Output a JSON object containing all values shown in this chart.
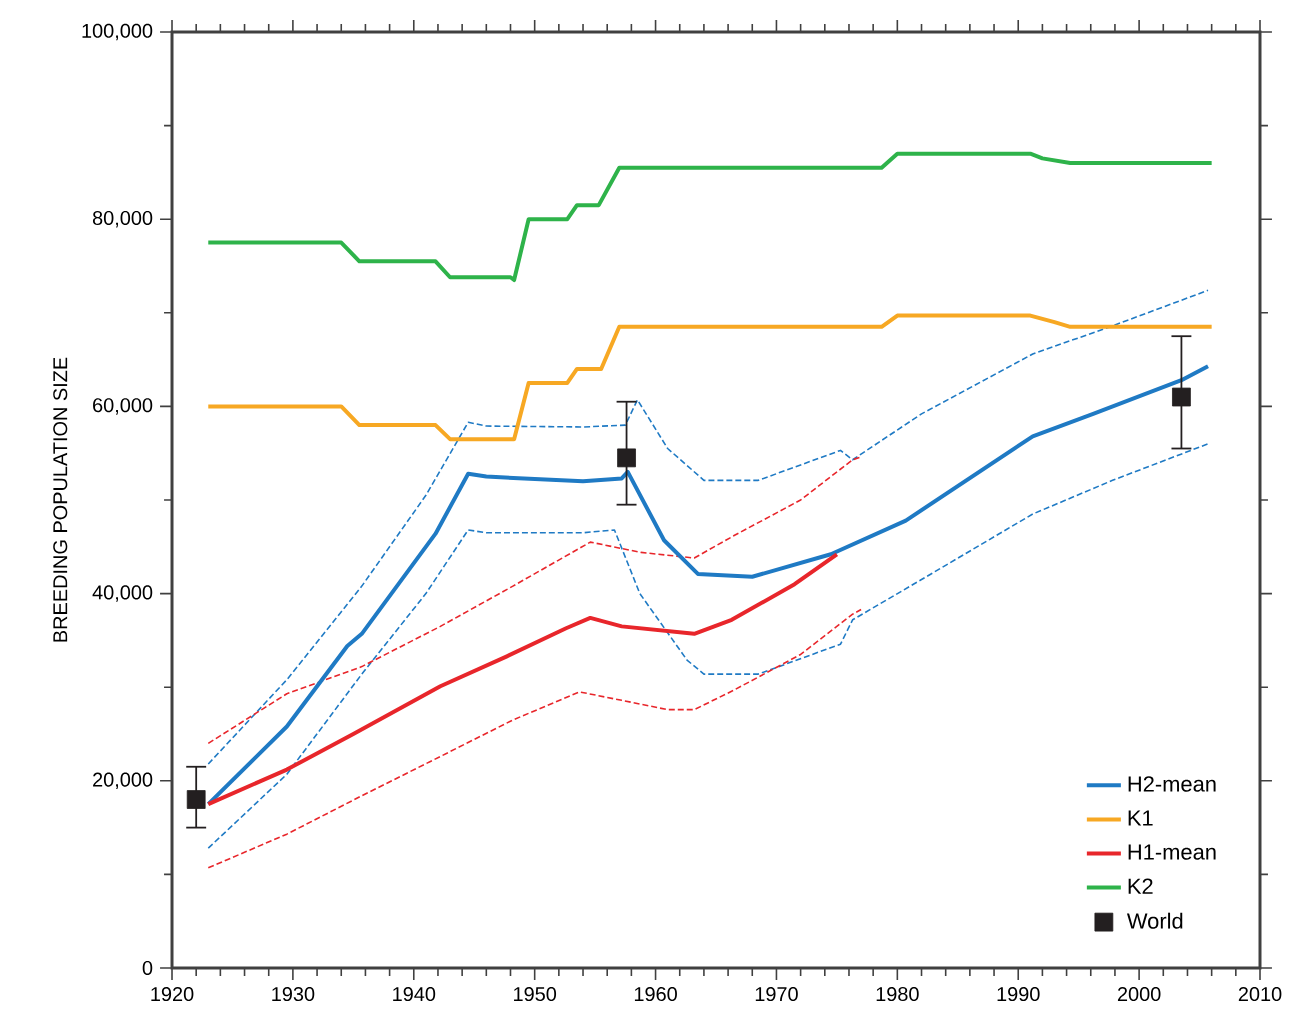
{
  "chart_data": {
    "type": "line",
    "ylabel": "BREEDING POPULATION SIZE",
    "xlim": [
      1920,
      2010
    ],
    "ylim": [
      0,
      100000
    ],
    "xticks": [
      1920,
      1930,
      1940,
      1950,
      1960,
      1970,
      1980,
      1990,
      2000,
      2010
    ],
    "yticks": [
      0,
      {
        "value": 20000,
        "label": "20,000"
      },
      {
        "value": 40000,
        "label": "40,000"
      },
      {
        "value": 60000,
        "label": "60,000"
      },
      {
        "value": 80000,
        "label": "80,000"
      },
      {
        "value": 100000,
        "label": "100,000"
      }
    ],
    "grid": false,
    "legend": "bottom right",
    "series": [
      {
        "line_style": "dashed",
        "color": "#1f7ac4",
        "x": [
          1923,
          1929.5,
          1935.7,
          1941,
          1944.5,
          1946,
          1954,
          1957.5,
          1958.5,
          1961,
          1964,
          1968.5,
          1975.3,
          1976.3,
          1982,
          1991.2,
          1997.8,
          2005.7
        ],
        "values": [
          21800,
          30800,
          40800,
          50500,
          58300,
          57900,
          57800,
          58000,
          60700,
          55500,
          52100,
          52100,
          55300,
          54300,
          59200,
          65600,
          68600,
          72400
        ]
      },
      {
        "line_style": "dashed",
        "color": "#1f7ac4",
        "x": [
          1923,
          1929.5,
          1935.7,
          1941,
          1944.5,
          1946,
          1954,
          1956.6,
          1958.7,
          1962.6,
          1964,
          1968.5,
          1975.3,
          1976.3,
          1982,
          1991.2,
          1997.8,
          2005.7
        ],
        "values": [
          12800,
          20700,
          31400,
          40000,
          46800,
          46500,
          46500,
          46800,
          40000,
          32900,
          31400,
          31400,
          34600,
          37200,
          41500,
          48500,
          52100,
          56000
        ]
      },
      {
        "line_style": "dashed",
        "color": "#e8262b",
        "x": [
          1923,
          1929.5,
          1935.7,
          1942.2,
          1948.2,
          1954.6,
          1958.8,
          1963.2,
          1966.5,
          1972,
          1976.3,
          1977
        ],
        "values": [
          24000,
          29300,
          32200,
          36500,
          40800,
          45500,
          44400,
          43800,
          46200,
          50000,
          54300,
          54600
        ]
      },
      {
        "line_style": "dashed",
        "color": "#e8262b",
        "x": [
          1923,
          1929.5,
          1935.7,
          1942.2,
          1948.2,
          1953.7,
          1957.2,
          1961,
          1963.2,
          1966.5,
          1972,
          1976.3,
          1977
        ],
        "values": [
          10700,
          14300,
          18400,
          22600,
          26500,
          29500,
          28600,
          27600,
          27600,
          29700,
          33500,
          37800,
          38300
        ]
      },
      {
        "name": "H2-mean",
        "line_style": "solid",
        "color": "#1f7ac4",
        "x": [
          1923,
          1929.5,
          1934.5,
          1935.7,
          1941.8,
          1944.5,
          1946,
          1954,
          1957.2,
          1957.7,
          1960.7,
          1963.5,
          1968,
          1974.5,
          1980.7,
          1991.2,
          1996.2,
          2003.5,
          2005.7
        ],
        "values": [
          17500,
          25800,
          34400,
          35700,
          46400,
          52800,
          52500,
          52000,
          52300,
          53000,
          45700,
          42100,
          41800,
          44200,
          47800,
          56800,
          59200,
          62800,
          64300
        ]
      },
      {
        "name": "K1",
        "line_style": "solid",
        "color": "#f7a823",
        "x": [
          1923,
          1934,
          1935.5,
          1941.8,
          1943,
          1948.3,
          1949.5,
          1952.7,
          1953.5,
          1955.5,
          1957,
          1978.7,
          1980,
          1991,
          1993,
          1994.3,
          2006
        ],
        "values": [
          60000,
          60000,
          58000,
          58000,
          56500,
          56500,
          62500,
          62500,
          64000,
          64000,
          68500,
          68500,
          69700,
          69700,
          69000,
          68500,
          68500
        ]
      },
      {
        "name": "H1-mean",
        "line_style": "solid",
        "color": "#e8262b",
        "x": [
          1923,
          1929.5,
          1935,
          1942.2,
          1947.7,
          1952.6,
          1954.6,
          1957.2,
          1963.2,
          1966.3,
          1971.5,
          1975
        ],
        "values": [
          17500,
          21200,
          25000,
          30100,
          33300,
          36300,
          37400,
          36500,
          35700,
          37200,
          41000,
          44200
        ]
      },
      {
        "name": "K2",
        "line_style": "solid",
        "color": "#2eb34a",
        "x": [
          1923,
          1934,
          1935.5,
          1941.8,
          1943,
          1948,
          1948.3,
          1949.5,
          1952.7,
          1953.5,
          1955.3,
          1957,
          1978.7,
          1980,
          1991,
          1992,
          1994.3,
          2006
        ],
        "values": [
          77500,
          77500,
          75500,
          75500,
          73800,
          73800,
          73500,
          80000,
          80000,
          81500,
          81500,
          85500,
          85500,
          87000,
          87000,
          86500,
          86000,
          86000
        ]
      },
      {
        "name": "World",
        "type": "scatter",
        "marker": "square",
        "color": "#231f20",
        "x": [
          1922,
          1957.6,
          2003.5
        ],
        "values": [
          18000,
          54500,
          61000
        ],
        "errors": [
          [
            15000,
            21500
          ],
          [
            49500,
            60500
          ],
          [
            55500,
            67500
          ]
        ]
      }
    ]
  }
}
